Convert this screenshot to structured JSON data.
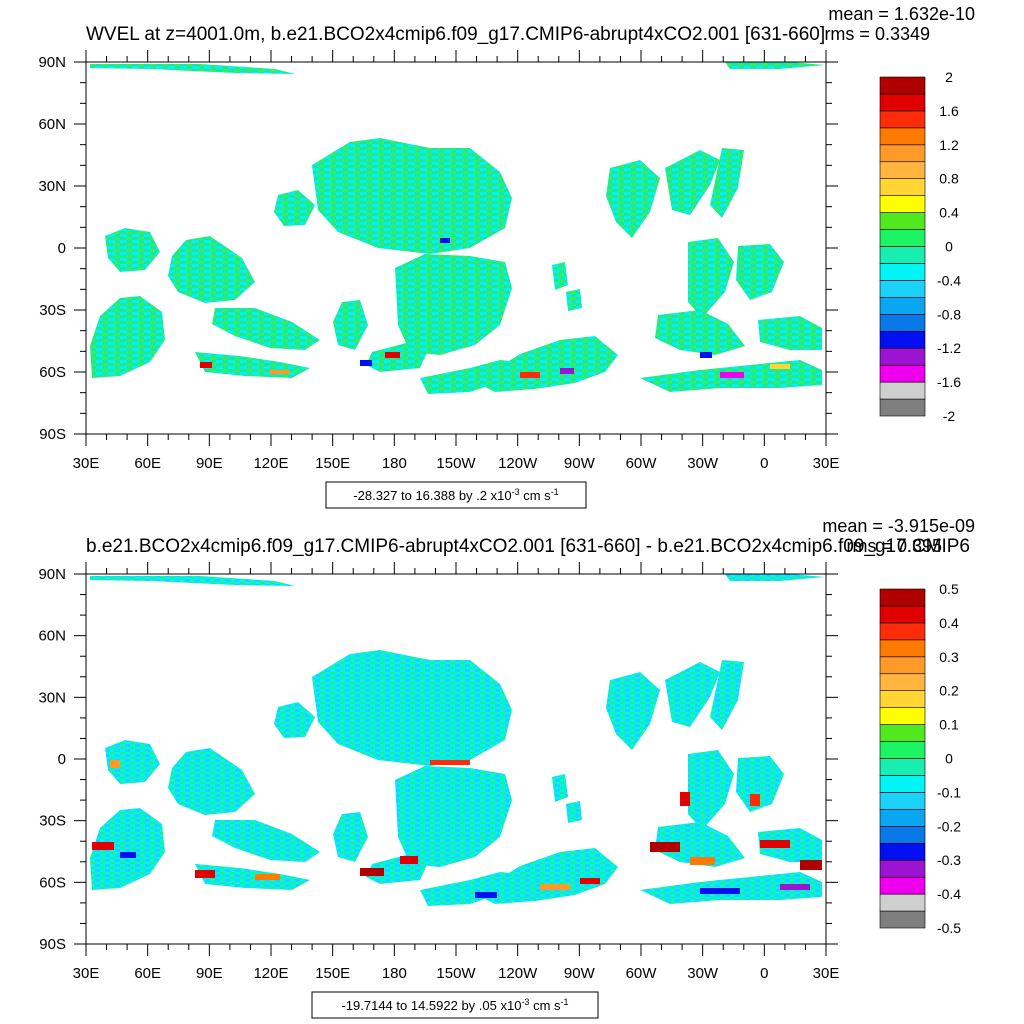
{
  "chart_data": [
    {
      "type": "heatmap",
      "title": "WVEL at z=4001.0m, b.e21.BCO2x4cmip6.f09_g17.CMIP6-abrupt4xCO2.001 [631-660]",
      "stats": {
        "mean": "mean = 1.632e-10",
        "rms": "rms = 0.3349"
      },
      "x_ticks": [
        "30E",
        "60E",
        "90E",
        "120E",
        "150E",
        "180",
        "150W",
        "120W",
        "90W",
        "60W",
        "30W",
        "0",
        "30E"
      ],
      "y_ticks": [
        "90N",
        "60N",
        "30N",
        "0",
        "30S",
        "60S",
        "90S"
      ],
      "x_range_deg": [
        30,
        390
      ],
      "y_range_deg": [
        -90,
        90
      ],
      "colorbar_labels": [
        "2",
        "1.6",
        "1.2",
        "0.8",
        "0.4",
        "0",
        "-0.4",
        "-0.8",
        "-1.2",
        "-1.6",
        "-2"
      ],
      "range_text": "-28.327 to 16.388 by .2 x10",
      "range_exp": "-3",
      "range_units": "cm s",
      "range_units_exp": "-1"
    },
    {
      "type": "heatmap",
      "title": "b.e21.BCO2x4cmip6.f09_g17.CMIP6-abrupt4xCO2.001 [631-660] - b.e21.BCO2x4cmip6.f09_g17.CMIP6",
      "stats": {
        "mean": "mean = -3.915e-09",
        "rms": "rms = 0.395"
      },
      "x_ticks": [
        "30E",
        "60E",
        "90E",
        "120E",
        "150E",
        "180",
        "150W",
        "120W",
        "90W",
        "60W",
        "30W",
        "0",
        "30E"
      ],
      "y_ticks": [
        "90N",
        "60N",
        "30N",
        "0",
        "30S",
        "60S",
        "90S"
      ],
      "x_range_deg": [
        30,
        390
      ],
      "y_range_deg": [
        -90,
        90
      ],
      "colorbar_labels": [
        "0.5",
        "0.4",
        "0.3",
        "0.2",
        "0.1",
        "0",
        "-0.1",
        "-0.2",
        "-0.3",
        "-0.4",
        "-0.5"
      ],
      "range_text": "-19.7144 to 14.5922 by .05 x10",
      "range_exp": "-3",
      "range_units": "cm s",
      "range_units_exp": "-1"
    }
  ],
  "palette": [
    "#7f7f7f",
    "#cfcfcf",
    "#ee00ee",
    "#9a14d2",
    "#0010f0",
    "#0a78e8",
    "#0aa6f2",
    "#1ad2fa",
    "#00f6f6",
    "#18eeb0",
    "#1df464",
    "#52e81e",
    "#ffff00",
    "#ffd633",
    "#ffb53e",
    "#ff9a2a",
    "#ff7a00",
    "#ff2c0a",
    "#e00000",
    "#b00000"
  ]
}
